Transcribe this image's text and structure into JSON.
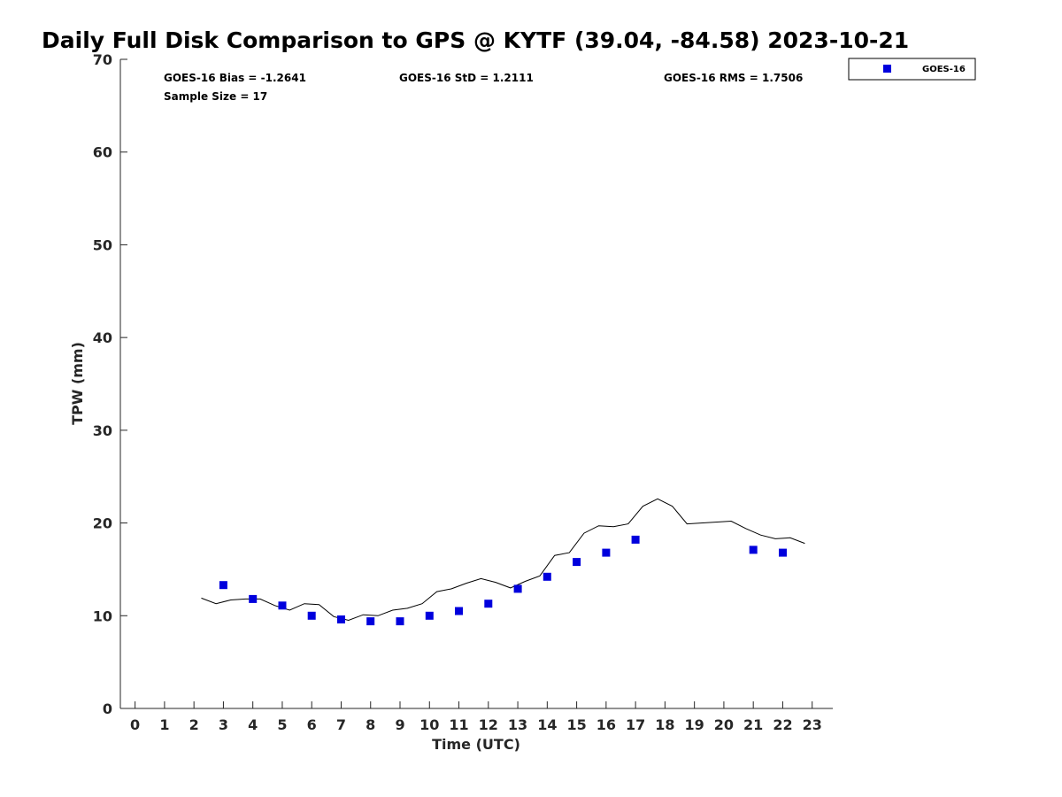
{
  "chart_data": {
    "type": "scatter",
    "title": "Daily Full Disk Comparison to GPS @ KYTF (39.04, -84.58) 2023-10-21",
    "xlabel": "Time (UTC)",
    "ylabel": "TPW (mm)",
    "xlim": [
      -0.5,
      23.7
    ],
    "ylim": [
      0,
      70
    ],
    "x_ticks": [
      0,
      1,
      2,
      3,
      4,
      5,
      6,
      7,
      8,
      9,
      10,
      11,
      12,
      13,
      14,
      15,
      16,
      17,
      18,
      19,
      20,
      21,
      22,
      23
    ],
    "y_ticks": [
      0,
      10,
      20,
      30,
      40,
      50,
      60,
      70
    ],
    "grid": false,
    "legend_position": "top-right",
    "stats": {
      "bias": "GOES-16 Bias = -1.2641",
      "std": "GOES-16 StD = 1.2111",
      "rms": "GOES-16 RMS = 1.7506",
      "sample": "Sample Size = 17"
    },
    "series": [
      {
        "name": "GOES-16",
        "kind": "scatter",
        "color": "#0000dd",
        "x": [
          3,
          4,
          5,
          6,
          7,
          8,
          9,
          10,
          11,
          12,
          13,
          14,
          15,
          16,
          17,
          21,
          22
        ],
        "y": [
          13.3,
          11.8,
          11.1,
          10.0,
          9.6,
          9.4,
          9.4,
          10.0,
          10.5,
          11.3,
          12.9,
          14.2,
          15.8,
          16.8,
          18.2,
          17.1,
          16.8
        ]
      },
      {
        "kind": "line",
        "color": "#000000",
        "x": [
          2.25,
          2.75,
          3.25,
          3.75,
          4.25,
          4.75,
          5.25,
          5.75,
          6.25,
          6.75,
          7.25,
          7.75,
          8.25,
          8.75,
          9.25,
          9.75,
          10.25,
          10.75,
          11.25,
          11.75,
          12.25,
          12.75,
          13.25,
          13.75,
          14.25,
          14.75,
          15.25,
          15.75,
          16.25,
          16.75,
          17.25,
          17.75,
          18.25,
          18.75,
          20.25,
          20.75,
          21.25,
          21.75,
          22.25,
          22.75
        ],
        "y": [
          11.9,
          11.3,
          11.7,
          11.8,
          11.8,
          11.1,
          10.6,
          11.3,
          11.2,
          9.9,
          9.5,
          10.1,
          10.0,
          10.6,
          10.8,
          11.3,
          12.6,
          12.9,
          13.5,
          14.0,
          13.6,
          13.0,
          13.7,
          14.3,
          16.5,
          16.8,
          18.9,
          19.7,
          19.6,
          19.9,
          21.8,
          22.6,
          21.8,
          19.9,
          20.2,
          19.4,
          18.7,
          18.3,
          18.4,
          17.8
        ]
      }
    ]
  }
}
